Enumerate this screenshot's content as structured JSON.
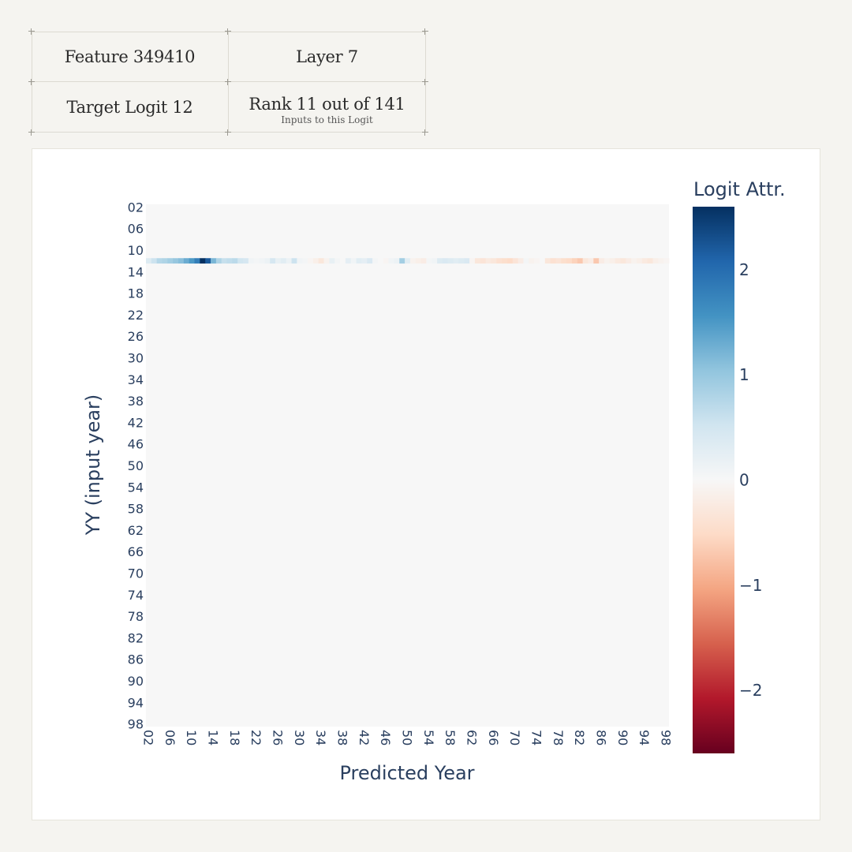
{
  "info": {
    "feature": "Feature 349410",
    "layer": "Layer 7",
    "target": "Target Logit 12",
    "rank": "Rank 11 out of 141",
    "rank_sub": "Inputs to this Logit"
  },
  "chart_data": {
    "type": "heatmap",
    "xlabel": "Predicted Year",
    "ylabel": "YY (input year)",
    "colorbar_title": "Logit Attr.",
    "colorscale": "RdBu",
    "zrange": [
      -2.6,
      2.6
    ],
    "colorbar_ticks": [
      2,
      1,
      0,
      -1,
      -2
    ],
    "colorbar_tick_labels": [
      "2",
      "1",
      "0",
      "−1",
      "−2"
    ],
    "axis_range": [
      2,
      98
    ],
    "tick_labels": [
      "02",
      "06",
      "10",
      "14",
      "18",
      "22",
      "26",
      "30",
      "34",
      "38",
      "42",
      "46",
      "50",
      "54",
      "58",
      "62",
      "66",
      "70",
      "74",
      "78",
      "82",
      "86",
      "90",
      "94",
      "98"
    ],
    "nonzero_row": 12,
    "row_values": {
      "columns": [
        2,
        3,
        4,
        5,
        6,
        7,
        8,
        9,
        10,
        11,
        12,
        13,
        14,
        15,
        16,
        17,
        18,
        19,
        20,
        21,
        22,
        23,
        24,
        25,
        26,
        27,
        28,
        29,
        30,
        31,
        32,
        33,
        34,
        35,
        36,
        37,
        38,
        39,
        40,
        41,
        42,
        43,
        44,
        45,
        46,
        47,
        48,
        49,
        50,
        51,
        52,
        53,
        54,
        55,
        56,
        57,
        58,
        59,
        60,
        61,
        62,
        63,
        64,
        65,
        66,
        67,
        68,
        69,
        70,
        71,
        72,
        73,
        74,
        75,
        76,
        77,
        78,
        79,
        80,
        81,
        82,
        83,
        84,
        85,
        86,
        87,
        88,
        89,
        90,
        91,
        92,
        93,
        94,
        95,
        96,
        97,
        98
      ],
      "values": [
        0.35,
        0.55,
        0.75,
        0.8,
        0.9,
        1.0,
        1.1,
        1.3,
        1.5,
        1.8,
        2.6,
        2.2,
        1.2,
        0.8,
        0.6,
        0.65,
        0.7,
        0.5,
        0.45,
        0.1,
        0.05,
        0.1,
        0.15,
        0.45,
        0.2,
        0.3,
        0.15,
        0.55,
        0.1,
        0.05,
        -0.05,
        -0.15,
        -0.3,
        -0.1,
        0.2,
        0.05,
        0.0,
        0.25,
        0.1,
        0.3,
        0.25,
        0.4,
        0.05,
        0.0,
        -0.05,
        0.1,
        0.15,
        0.9,
        0.3,
        -0.1,
        -0.15,
        -0.2,
        0.05,
        0.1,
        0.35,
        0.4,
        0.35,
        0.3,
        0.35,
        0.4,
        -0.05,
        -0.3,
        -0.35,
        -0.25,
        -0.3,
        -0.4,
        -0.45,
        -0.5,
        -0.35,
        -0.2,
        0.05,
        -0.1,
        -0.05,
        0.0,
        -0.3,
        -0.4,
        -0.35,
        -0.45,
        -0.5,
        -0.6,
        -0.7,
        -0.3,
        -0.2,
        -0.7,
        -0.2,
        -0.1,
        -0.15,
        -0.25,
        -0.3,
        -0.2,
        -0.1,
        -0.15,
        -0.25,
        -0.3,
        -0.15,
        -0.1,
        -0.05
      ]
    }
  }
}
